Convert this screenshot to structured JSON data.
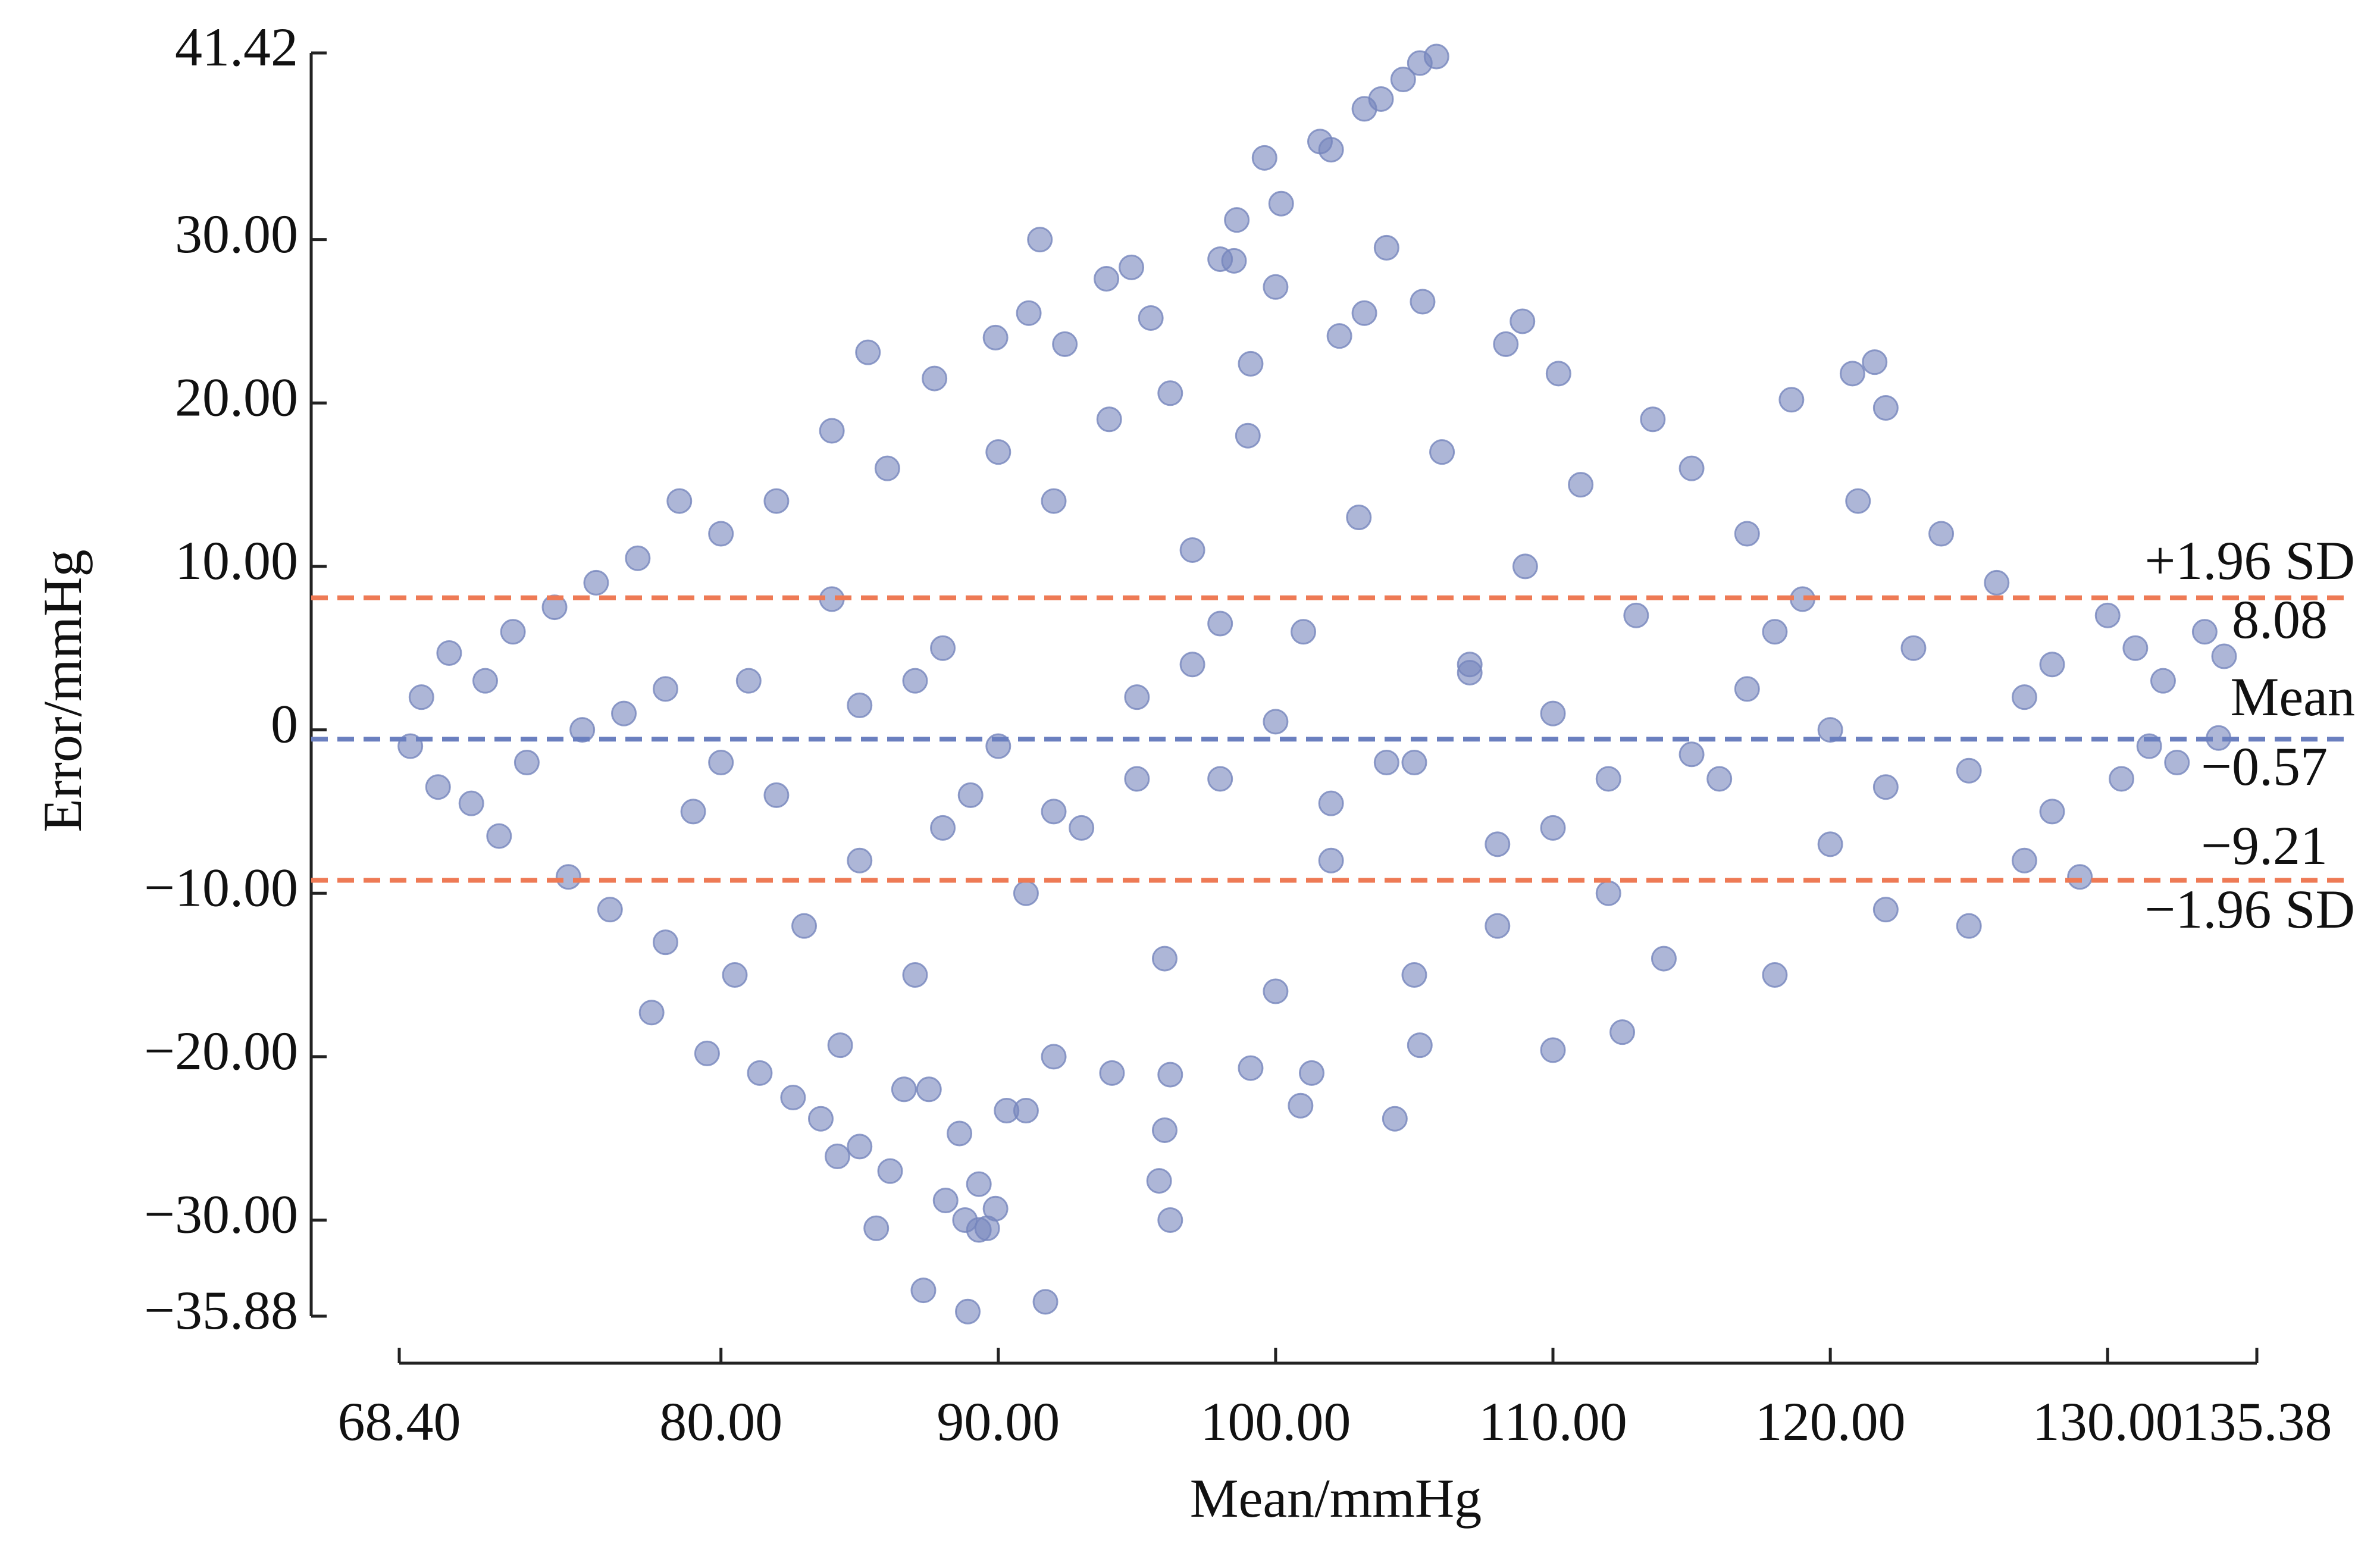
{
  "chart_data": {
    "type": "scatter",
    "x_label": "Mean/mmHg",
    "y_label": "Error/mmHg",
    "color": "#7686bd",
    "xlim": [
      68.4,
      135.38
    ],
    "ylim": [
      -35.88,
      41.42
    ],
    "xticks": [
      {
        "value": 68.4,
        "label": "68.40"
      },
      {
        "value": 80,
        "label": "80.00"
      },
      {
        "value": 90,
        "label": "90.00"
      },
      {
        "value": 100,
        "label": "100.00"
      },
      {
        "value": 110,
        "label": "110.00"
      },
      {
        "value": 120,
        "label": "120.00"
      },
      {
        "value": 130,
        "label": "130.00"
      },
      135.38
    ],
    "yticks": [
      41.42,
      {
        "value": 30,
        "label": "30.00"
      },
      {
        "value": 20,
        "label": "20.00"
      },
      {
        "value": 10,
        "label": "10.00"
      },
      0,
      {
        "value": -10,
        "label": "−10.00"
      },
      {
        "value": -20,
        "label": "−20.00"
      },
      {
        "value": -30,
        "label": "−30.00"
      },
      {
        "value": -35.88,
        "label": "−35.88"
      }
    ],
    "reference_lines": [
      {
        "name": "+1.96 SD",
        "value": 8.08,
        "value_label": "8.08",
        "color": "#ee7a55"
      },
      {
        "name": "Mean",
        "value": -0.57,
        "value_label": "−0.57",
        "color": "#6a7fbf"
      },
      {
        "name": "−1.96 SD",
        "value": -9.21,
        "value_label": "−9.21",
        "color": "#ee7a55"
      }
    ],
    "x": [
      105.8,
      105.2,
      104.6,
      103.8,
      103.2,
      101.6,
      102,
      99.6,
      100.2,
      98.6,
      91.5,
      104,
      98,
      98.5,
      94.8,
      93.9,
      100,
      105.3,
      91.1,
      95.5,
      92.4,
      89.9,
      85.3,
      102.3,
      108.9,
      108.3,
      103.2,
      99.1,
      121.6,
      120.8,
      110.2,
      87.7,
      96.2,
      113.6,
      118.6,
      122,
      84,
      88.9,
      91.7,
      87.3,
      89.6,
      89.3,
      88.8,
      85.6,
      96.2,
      89.9,
      89.3,
      95.8,
      86.1,
      88.1,
      84.2,
      85,
      88.6,
      96,
      83.6,
      104.3,
      82.6,
      90.3,
      91,
      100.9,
      86.6,
      87.5,
      94.1,
      96.2,
      101.3,
      92,
      99.1,
      81.4,
      79.5,
      110,
      84.3,
      105.2,
      112.5,
      77.5,
      68.8,
      69.2,
      69.8,
      70.2,
      71,
      71.5,
      72,
      72.5,
      73,
      74,
      74.5,
      75.5,
      76,
      76.5,
      77,
      78,
      78.5,
      79,
      80,
      80.5,
      81,
      82,
      83,
      84,
      85,
      86,
      87,
      88,
      89,
      90,
      91,
      92,
      93,
      94,
      95,
      96,
      97,
      98,
      99,
      100,
      101,
      102,
      103,
      104,
      105,
      106,
      107,
      108,
      109,
      110,
      111,
      112,
      113,
      114,
      115,
      116,
      117,
      118,
      119,
      120,
      121,
      122,
      123,
      124,
      125,
      126,
      127,
      128,
      129,
      130,
      130.5,
      131,
      131.5,
      132,
      132.5,
      133.5,
      134.2,
      134,
      75,
      80,
      85,
      90,
      95,
      100,
      105,
      110,
      115,
      120,
      125,
      82,
      87,
      92,
      97,
      102,
      107,
      112,
      117,
      122,
      127,
      78,
      88,
      98,
      108,
      118,
      128
    ],
    "values": [
      41.2,
      40.8,
      39.8,
      38.6,
      38,
      36,
      35.5,
      35,
      32.2,
      31.2,
      30,
      29.5,
      28.8,
      28.7,
      28.3,
      27.6,
      27.1,
      26.2,
      25.5,
      25.2,
      23.6,
      24,
      23.1,
      24.1,
      25,
      23.6,
      25.5,
      22.4,
      22.5,
      21.8,
      21.8,
      21.5,
      20.6,
      19,
      20.2,
      19.7,
      18.3,
      -35.6,
      -35,
      -34.3,
      -30.5,
      -30.6,
      -30,
      -30.5,
      -30,
      -29.3,
      -27.8,
      -27.6,
      -27,
      -28.8,
      -26.1,
      -25.5,
      -24.7,
      -24.5,
      -23.8,
      -23.8,
      -22.5,
      -23.3,
      -23.3,
      -23,
      -22,
      -22,
      -21,
      -21.1,
      -21,
      -20,
      -20.7,
      -21,
      -19.8,
      -19.6,
      -19.3,
      -19.3,
      -18.5,
      -17.3,
      -1,
      2,
      -3.5,
      4.7,
      -4.5,
      3,
      -6.5,
      6,
      -2,
      7.5,
      -9,
      9,
      -11,
      1,
      10.5,
      -13,
      14,
      -5,
      12,
      -15,
      3,
      14,
      -12,
      8,
      -8,
      16,
      -15,
      5,
      -4,
      17,
      -10,
      14,
      -6,
      19,
      2,
      -14,
      11,
      -3,
      18,
      -16,
      6,
      -8,
      13,
      -2,
      -15,
      17,
      4,
      -12,
      10,
      -6,
      15,
      -10,
      7,
      -14,
      16,
      -3,
      12,
      -15,
      8,
      -7,
      14,
      -11,
      5,
      12,
      -12,
      9,
      -8,
      4,
      -9,
      7,
      -3,
      5,
      -1,
      3,
      -2,
      6,
      4.5,
      -0.5,
      0,
      -2,
      1.5,
      -1,
      -3,
      0.5,
      -2,
      1,
      -1.5,
      0,
      -2.5,
      -4,
      3,
      -5,
      4,
      -4.5,
      3.5,
      -3,
      2.5,
      -3.5,
      2,
      2.5,
      -6,
      6.5,
      -7,
      6,
      -5
    ]
  }
}
